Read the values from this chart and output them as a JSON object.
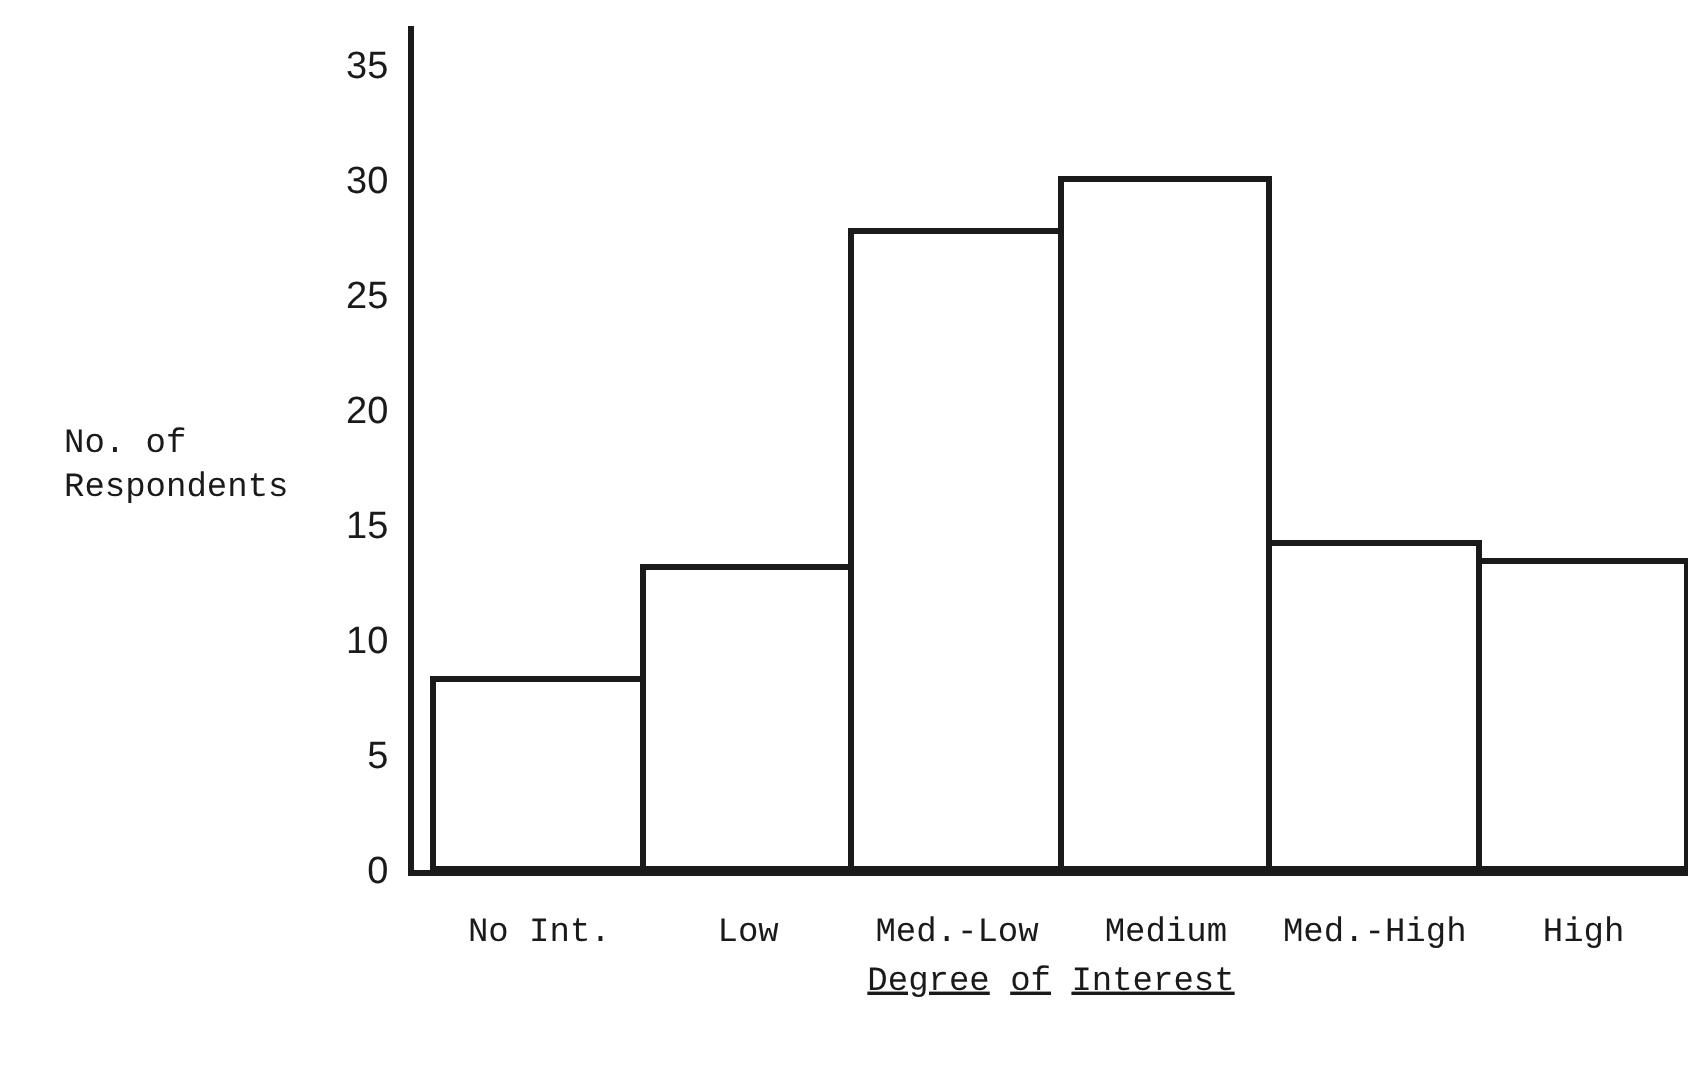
{
  "chart_data": {
    "type": "bar",
    "xlabel": "Degree of Interest",
    "ylabel": "No. of\nRespondents",
    "categories": [
      "No Int.",
      "Low",
      "Med.-Low",
      "Medium",
      "Med.-High",
      "High"
    ],
    "values": [
      8.3,
      13.1,
      27.7,
      30.0,
      14.2,
      13.4
    ],
    "color": "#ffffff",
    "ylim": [
      0,
      36.7
    ],
    "yticks": [
      0,
      5,
      10,
      15,
      20,
      25,
      30,
      35
    ]
  }
}
